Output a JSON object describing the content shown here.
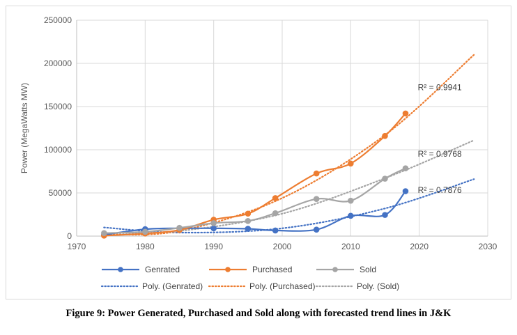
{
  "caption": "Figure 9: Power Generated, Purchased and Sold along with forecasted trend lines in J&K",
  "chart_data": {
    "type": "line",
    "title": "",
    "xlabel": "",
    "ylabel": "Power (MegaWatts MW)",
    "xlim": [
      1970,
      2030
    ],
    "ylim": [
      0,
      250000
    ],
    "x_ticks": [
      1970,
      1980,
      1990,
      2000,
      2010,
      2020,
      2030
    ],
    "y_ticks": [
      0,
      50000,
      100000,
      150000,
      200000,
      250000
    ],
    "y_tick_labels": [
      "0",
      "50000",
      "100000",
      "150000",
      "200000",
      "250000"
    ],
    "grid": "major gridlines",
    "legend_position": "bottom",
    "series": [
      {
        "name": "Genrated",
        "color": "#4472C4",
        "x": [
          1974,
          1980,
          1985,
          1990,
          1995,
          1999,
          2005,
          2010,
          2015,
          2018
        ],
        "y": [
          1500,
          8000,
          9000,
          9000,
          8500,
          6500,
          7500,
          23500,
          24500,
          52000
        ]
      },
      {
        "name": "Purchased",
        "color": "#ED7D31",
        "x": [
          1974,
          1980,
          1985,
          1990,
          1995,
          1999,
          2005,
          2010,
          2015,
          2018
        ],
        "y": [
          500,
          3000,
          7000,
          19000,
          26000,
          44000,
          72500,
          84000,
          116000,
          142000
        ]
      },
      {
        "name": "Sold",
        "color": "#A5A5A5",
        "x": [
          1974,
          1980,
          1985,
          1990,
          1995,
          1999,
          2005,
          2010,
          2015,
          2018
        ],
        "y": [
          3500,
          5000,
          9500,
          15000,
          17500,
          26500,
          43000,
          41000,
          66500,
          78500
        ]
      }
    ],
    "trendlines": [
      {
        "name": "Poly. (Genrated)",
        "color": "#4472C4",
        "r2": "R² = 0.7876",
        "x": [
          1974,
          1985,
          2000,
          2015,
          2028
        ],
        "y": [
          10000,
          4000,
          9000,
          32000,
          66000
        ]
      },
      {
        "name": "Poly. (Purchased)",
        "color": "#ED7D31",
        "r2": "R² = 0.9941",
        "x": [
          1974,
          1985,
          2000,
          2015,
          2028
        ],
        "y": [
          2000,
          6000,
          44000,
          117000,
          210000
        ]
      },
      {
        "name": "Poly. (Sold)",
        "color": "#A5A5A5",
        "r2": "R² = 0.9768",
        "x": [
          1974,
          1985,
          2000,
          2015,
          2028
        ],
        "y": [
          3500,
          6000,
          26000,
          67000,
          111000
        ]
      }
    ]
  }
}
